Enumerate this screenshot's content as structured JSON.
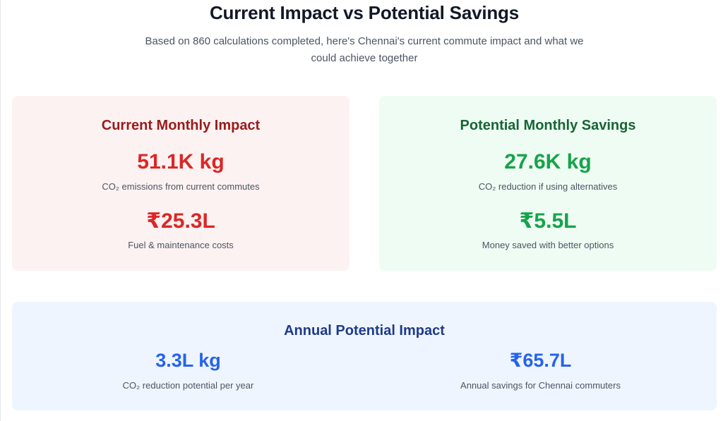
{
  "header": {
    "title": "Current Impact vs Potential Savings",
    "subtitle": "Based on 860 calculations completed, here's Chennai's current commute impact and what we could achieve together"
  },
  "current": {
    "heading": "Current Monthly Impact",
    "co2_value": "51.1K kg",
    "co2_label": "CO₂ emissions from current commutes",
    "cost_value": "₹25.3L",
    "cost_label": "Fuel & maintenance costs"
  },
  "potential": {
    "heading": "Potential Monthly Savings",
    "co2_value": "27.6K kg",
    "co2_label": "CO₂ reduction if using alternatives",
    "money_value": "₹5.5L",
    "money_label": "Money saved with better options"
  },
  "annual": {
    "heading": "Annual Potential Impact",
    "co2_value": "3.3L kg",
    "co2_label": "CO₂ reduction potential per year",
    "savings_value": "₹65.7L",
    "savings_label": "Annual savings for Chennai commuters"
  },
  "colors": {
    "current_accent": "#dc2626",
    "potential_accent": "#16a34a",
    "annual_accent": "#2563eb"
  }
}
